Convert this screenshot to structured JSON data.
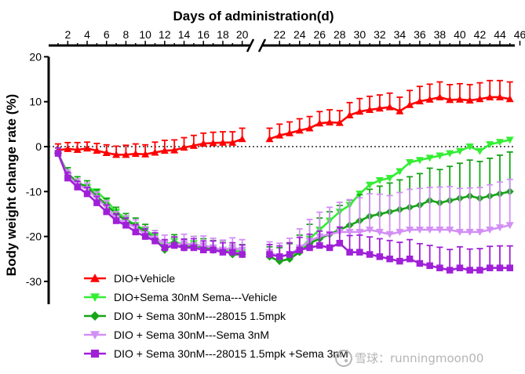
{
  "chart_data": {
    "type": "line",
    "title": "Days of administration(d)",
    "ylabel": "Body weight change rate (%)",
    "xlabel": "",
    "x_ticks": [
      2,
      4,
      6,
      8,
      10,
      12,
      14,
      16,
      18,
      20,
      22,
      24,
      26,
      28,
      30,
      32,
      34,
      36,
      38,
      40,
      42,
      44,
      46
    ],
    "y_ticks": [
      20,
      10,
      0,
      -10,
      -20,
      -30
    ],
    "ylim": [
      -35,
      20
    ],
    "axis_break": "between 20 and 22",
    "zero_reference_line": "dotted",
    "legend_position": "bottom-left",
    "x": [
      1,
      2,
      3,
      4,
      5,
      6,
      7,
      8,
      9,
      10,
      11,
      12,
      13,
      14,
      15,
      16,
      17,
      18,
      19,
      20,
      21,
      22,
      23,
      24,
      25,
      26,
      27,
      28,
      29,
      30,
      31,
      32,
      33,
      34,
      35,
      36,
      37,
      38,
      39,
      40,
      41,
      42,
      43,
      44,
      45
    ],
    "series": [
      {
        "name": "DIO+Vehicle",
        "color": "#ff0000",
        "marker": "triangle-up",
        "error_bar": "upper",
        "values": [
          -0.8,
          -0.5,
          -0.7,
          -0.4,
          -0.9,
          -1.4,
          -1.8,
          -1.8,
          -1.6,
          -1.7,
          -1.3,
          -0.9,
          -0.8,
          -0.2,
          0.2,
          0.7,
          0.8,
          0.9,
          0.9,
          1.7,
          1.7,
          2.5,
          3.0,
          3.6,
          4.1,
          5.2,
          5.4,
          5.3,
          7.0,
          7.8,
          8.2,
          8.5,
          8.8,
          7.9,
          9.3,
          10.1,
          10.5,
          11.0,
          10.4,
          10.5,
          10.3,
          10.6,
          11.0,
          11.0,
          10.6
        ],
        "errors": [
          1.4,
          1.4,
          1.6,
          1.4,
          1.6,
          1.8,
          1.9,
          2.1,
          2.2,
          2.1,
          2.3,
          2.3,
          2.3,
          2.2,
          2.3,
          2.3,
          2.4,
          2.4,
          2.4,
          2.4,
          2.4,
          2.5,
          2.5,
          2.6,
          2.6,
          2.6,
          2.8,
          2.7,
          2.8,
          2.9,
          3.0,
          3.0,
          3.1,
          3.1,
          3.2,
          3.3,
          3.4,
          3.4,
          3.4,
          3.5,
          3.5,
          3.6,
          3.7,
          3.7,
          3.8
        ]
      },
      {
        "name": "DIO+Sema 30nM Sema---Vehicle",
        "color": "#33ee33",
        "marker": "triangle-down",
        "error_bar": "upper",
        "values": [
          -1.5,
          -6.5,
          -8.5,
          -9.0,
          -10.0,
          -12.0,
          -14.5,
          -16.0,
          -17.5,
          -18.5,
          -20.0,
          -22.0,
          -21.0,
          -22.0,
          -21.5,
          -22.5,
          -22.5,
          -23.0,
          -23.0,
          -23.5,
          -24.5,
          -25.5,
          -25.0,
          -23.0,
          -20.5,
          -18.5,
          -16.5,
          -14.5,
          -13.0,
          -10.5,
          -8.5,
          -7.5,
          -7.0,
          -5.5,
          -3.5,
          -3.0,
          -2.5,
          -2.0,
          -1.5,
          -1.0,
          0.0,
          -1.0,
          0.5,
          1.0,
          1.5
        ]
      },
      {
        "name": "DIO + Sema 30nM---28015 1.5mpk",
        "color": "#17a517",
        "marker": "diamond",
        "error_bar": "upper",
        "values": [
          -1.5,
          -6.0,
          -8.0,
          -9.0,
          -11.0,
          -13.0,
          -15.0,
          -16.5,
          -17.5,
          -19.0,
          -20.5,
          -23.0,
          -21.5,
          -22.5,
          -22.0,
          -22.5,
          -23.0,
          -23.0,
          -24.0,
          -24.0,
          -24.5,
          -25.5,
          -25.0,
          -23.5,
          -21.5,
          -20.5,
          -19.5,
          -18.5,
          -17.5,
          -16.5,
          -15.5,
          -15.0,
          -14.5,
          -14.0,
          -13.5,
          -13.0,
          -12.0,
          -12.5,
          -12.0,
          -11.5,
          -11.0,
          -11.5,
          -11.0,
          -10.5,
          -10.0
        ],
        "errors": [
          1.2,
          1.3,
          1.3,
          1.4,
          1.4,
          1.5,
          1.5,
          1.6,
          1.6,
          1.7,
          1.8,
          1.8,
          1.9,
          1.9,
          2.0,
          2.0,
          2.1,
          2.1,
          2.1,
          2.2,
          2.2,
          3.0,
          3.4,
          3.8,
          4.2,
          4.6,
          5.0,
          5.4,
          5.6,
          5.8,
          6.0,
          6.2,
          6.4,
          6.6,
          6.8,
          7.0,
          7.2,
          7.4,
          7.6,
          7.8,
          8.0,
          8.2,
          8.4,
          8.6,
          8.8
        ]
      },
      {
        "name": "DIO + Sema 30nM---Sema 3nM",
        "color": "#d38ff5",
        "marker": "triangle-down",
        "error_bar": "upper",
        "values": [
          -1.5,
          -6.5,
          -8.5,
          -9.5,
          -11.5,
          -13.5,
          -16.0,
          -17.0,
          -18.0,
          -19.5,
          -20.5,
          -21.5,
          -22.0,
          -21.5,
          -22.0,
          -22.0,
          -22.5,
          -23.0,
          -22.5,
          -23.0,
          -23.5,
          -24.5,
          -24.0,
          -22.5,
          -21.0,
          -20.0,
          -19.5,
          -19.0,
          -19.0,
          -19.0,
          -18.5,
          -19.0,
          -19.5,
          -19.0,
          -18.5,
          -18.5,
          -18.5,
          -18.5,
          -18.5,
          -19.0,
          -19.0,
          -19.0,
          -18.5,
          -18.0,
          -17.5
        ],
        "errors": [
          1.2,
          1.3,
          1.3,
          1.4,
          1.4,
          1.5,
          1.5,
          1.6,
          1.7,
          1.7,
          1.8,
          1.8,
          1.9,
          2.0,
          2.0,
          2.1,
          2.1,
          2.2,
          2.2,
          2.3,
          2.3,
          3.0,
          3.6,
          4.2,
          4.8,
          5.4,
          6.0,
          6.6,
          7.2,
          7.6,
          8.0,
          8.4,
          8.6,
          8.8,
          9.0,
          9.2,
          9.4,
          9.5,
          9.6,
          9.7,
          9.8,
          9.9,
          10.0,
          10.1,
          10.2
        ]
      },
      {
        "name": "DIO + Sema 30nM---28015 1.5mpk +Sema 3nM",
        "color": "#a020d8",
        "marker": "square",
        "error_bar": "upper",
        "values": [
          -1.5,
          -7.0,
          -9.0,
          -10.5,
          -12.5,
          -14.5,
          -16.5,
          -17.5,
          -19.0,
          -20.0,
          -21.0,
          -22.5,
          -22.0,
          -22.5,
          -22.5,
          -23.0,
          -23.0,
          -23.5,
          -23.5,
          -24.0,
          -24.0,
          -24.5,
          -24.0,
          -23.0,
          -22.5,
          -22.0,
          -22.5,
          -21.5,
          -23.5,
          -23.5,
          -24.0,
          -24.5,
          -25.0,
          -25.5,
          -25.0,
          -26.0,
          -26.5,
          -27.0,
          -27.5,
          -27.0,
          -27.5,
          -27.5,
          -27.0,
          -27.0,
          -27.0
        ],
        "errors": [
          1.2,
          1.3,
          1.3,
          1.4,
          1.4,
          1.5,
          1.5,
          1.6,
          1.6,
          1.7,
          1.8,
          1.8,
          1.9,
          1.9,
          2.0,
          2.0,
          2.0,
          2.1,
          2.1,
          2.1,
          2.2,
          2.4,
          2.6,
          2.8,
          3.0,
          3.2,
          3.4,
          3.6,
          3.7,
          3.8,
          3.9,
          4.0,
          4.1,
          4.2,
          4.3,
          4.4,
          4.5,
          4.6,
          4.6,
          4.7,
          4.7,
          4.8,
          4.8,
          4.9,
          4.9
        ]
      }
    ]
  },
  "watermark": {
    "icon": "snowball-icon",
    "text": "雪球：runningmoon00"
  }
}
